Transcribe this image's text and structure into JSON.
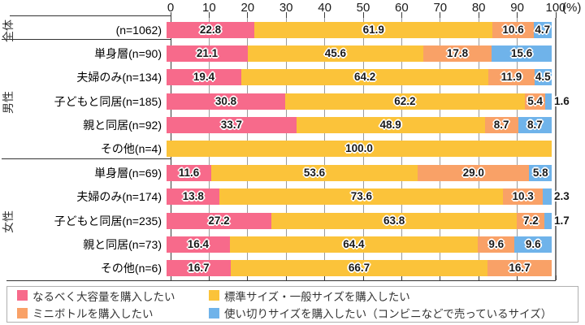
{
  "chart_data": {
    "type": "bar",
    "stacked": true,
    "orientation": "horizontal",
    "unit_label": "(%)",
    "xlim": [
      0,
      100
    ],
    "x_ticks": [
      0,
      10,
      20,
      30,
      40,
      50,
      60,
      70,
      80,
      90,
      100
    ],
    "grid": true,
    "legend_position": "bottom",
    "series": [
      {
        "name": "なるべく大容量を購入したい",
        "color": "#f76a8b"
      },
      {
        "name": "標準サイズ・一般サイズを購入したい",
        "color": "#fbc33a"
      },
      {
        "name": "ミニボトルを購入したい",
        "color": "#f9a167"
      },
      {
        "name": "使い切りサイズを購入したい（コンビニなどで売っているサイズ）",
        "color": "#6fb3ea"
      }
    ],
    "groups": [
      {
        "name": "全体",
        "rows": [
          {
            "label": "(n=1062)",
            "values": [
              22.8,
              61.9,
              10.6,
              4.7
            ]
          }
        ]
      },
      {
        "name": "男性",
        "rows": [
          {
            "label": "単身層(n=90)",
            "values": [
              21.1,
              45.6,
              17.8,
              15.6
            ]
          },
          {
            "label": "夫婦のみ(n=134)",
            "values": [
              19.4,
              64.2,
              11.9,
              4.5
            ]
          },
          {
            "label": "子どもと同居(n=185)",
            "values": [
              30.8,
              62.2,
              5.4,
              1.6
            ]
          },
          {
            "label": "親と同居(n=92)",
            "values": [
              33.7,
              48.9,
              8.7,
              8.7
            ]
          },
          {
            "label": "その他(n=4)",
            "values": [
              0,
              100.0,
              0,
              0
            ]
          }
        ]
      },
      {
        "name": "女性",
        "rows": [
          {
            "label": "単身層(n=69)",
            "values": [
              11.6,
              53.6,
              29.0,
              5.8
            ]
          },
          {
            "label": "夫婦のみ(n=174)",
            "values": [
              13.8,
              73.6,
              10.3,
              2.3
            ]
          },
          {
            "label": "子どもと同居(n=235)",
            "values": [
              27.2,
              63.8,
              7.2,
              1.7
            ]
          },
          {
            "label": "親と同居(n=73)",
            "values": [
              16.4,
              64.4,
              9.6,
              9.6
            ]
          },
          {
            "label": "その他(n=6)",
            "values": [
              16.7,
              66.7,
              16.7,
              0
            ]
          }
        ]
      }
    ],
    "colors": {
      "gridline": "#9b9b9b",
      "axis": "#3c3c3c",
      "value_text": "#1a1a1a"
    },
    "label_rules": {
      "inside_min_value": 4,
      "decimals": 1
    }
  }
}
